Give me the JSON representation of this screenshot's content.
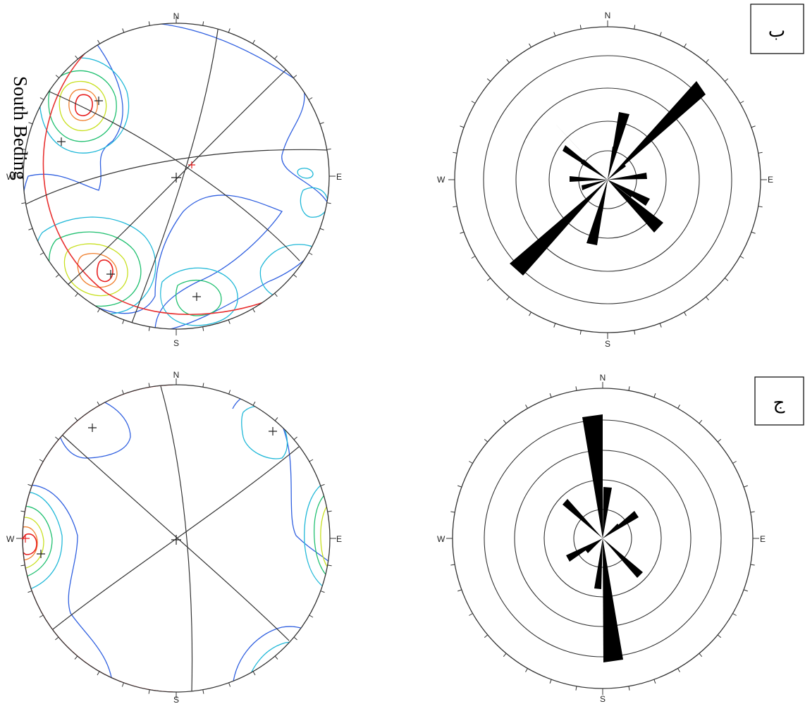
{
  "directions": {
    "north": "N",
    "south": "S",
    "east": "E",
    "west": "W"
  },
  "annotations": {
    "bedding": "South Beding"
  },
  "panel_labels": {
    "top": "ب",
    "bottom": "ج"
  },
  "colors": {
    "frame": "#333333",
    "great_circle": "#333333",
    "bedding_circle": "#e83030",
    "petals": "#000000",
    "contours": [
      "#3060e0",
      "#20b8d8",
      "#20c070",
      "#60d020",
      "#c8e020",
      "#f0c020",
      "#f08030",
      "#e82020"
    ]
  }
}
